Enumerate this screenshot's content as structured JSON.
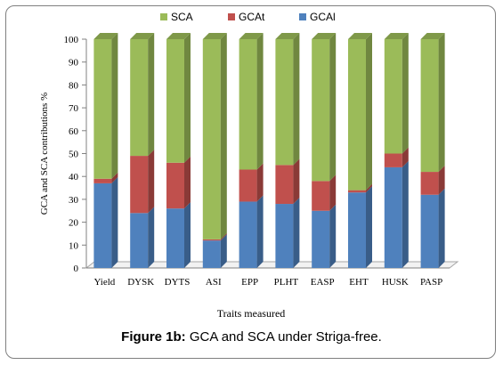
{
  "chart_data": {
    "type": "bar",
    "stacked": true,
    "ylabel": "GCA and SCA contributions %",
    "xlabel": "Traits measured",
    "ylim": [
      0,
      100
    ],
    "yticks": [
      0,
      10,
      20,
      30,
      40,
      50,
      60,
      70,
      80,
      90,
      100
    ],
    "categories": [
      "Yield",
      "DYSK",
      "DYTS",
      "ASI",
      "EPP",
      "PLHT",
      "EASP",
      "EHT",
      "HUSK",
      "PASP"
    ],
    "series": [
      {
        "name": "GCAl",
        "color": "#4f81bd",
        "values": [
          37,
          24,
          26,
          12,
          29,
          28,
          25,
          33,
          44,
          32
        ]
      },
      {
        "name": "GCAt",
        "color": "#c0504d",
        "values": [
          2,
          25,
          20,
          0.5,
          14,
          17,
          13,
          1,
          6,
          10
        ]
      },
      {
        "name": "SCA",
        "color": "#9bbb59",
        "values": [
          61,
          51,
          54,
          87.5,
          57,
          55,
          62,
          66,
          50,
          58
        ]
      }
    ],
    "legend": {
      "position": "top",
      "order": [
        "SCA",
        "GCAt",
        "GCAl"
      ]
    }
  },
  "caption": {
    "bold": "Figure 1b:",
    "text": " GCA and SCA under Striga-free."
  }
}
